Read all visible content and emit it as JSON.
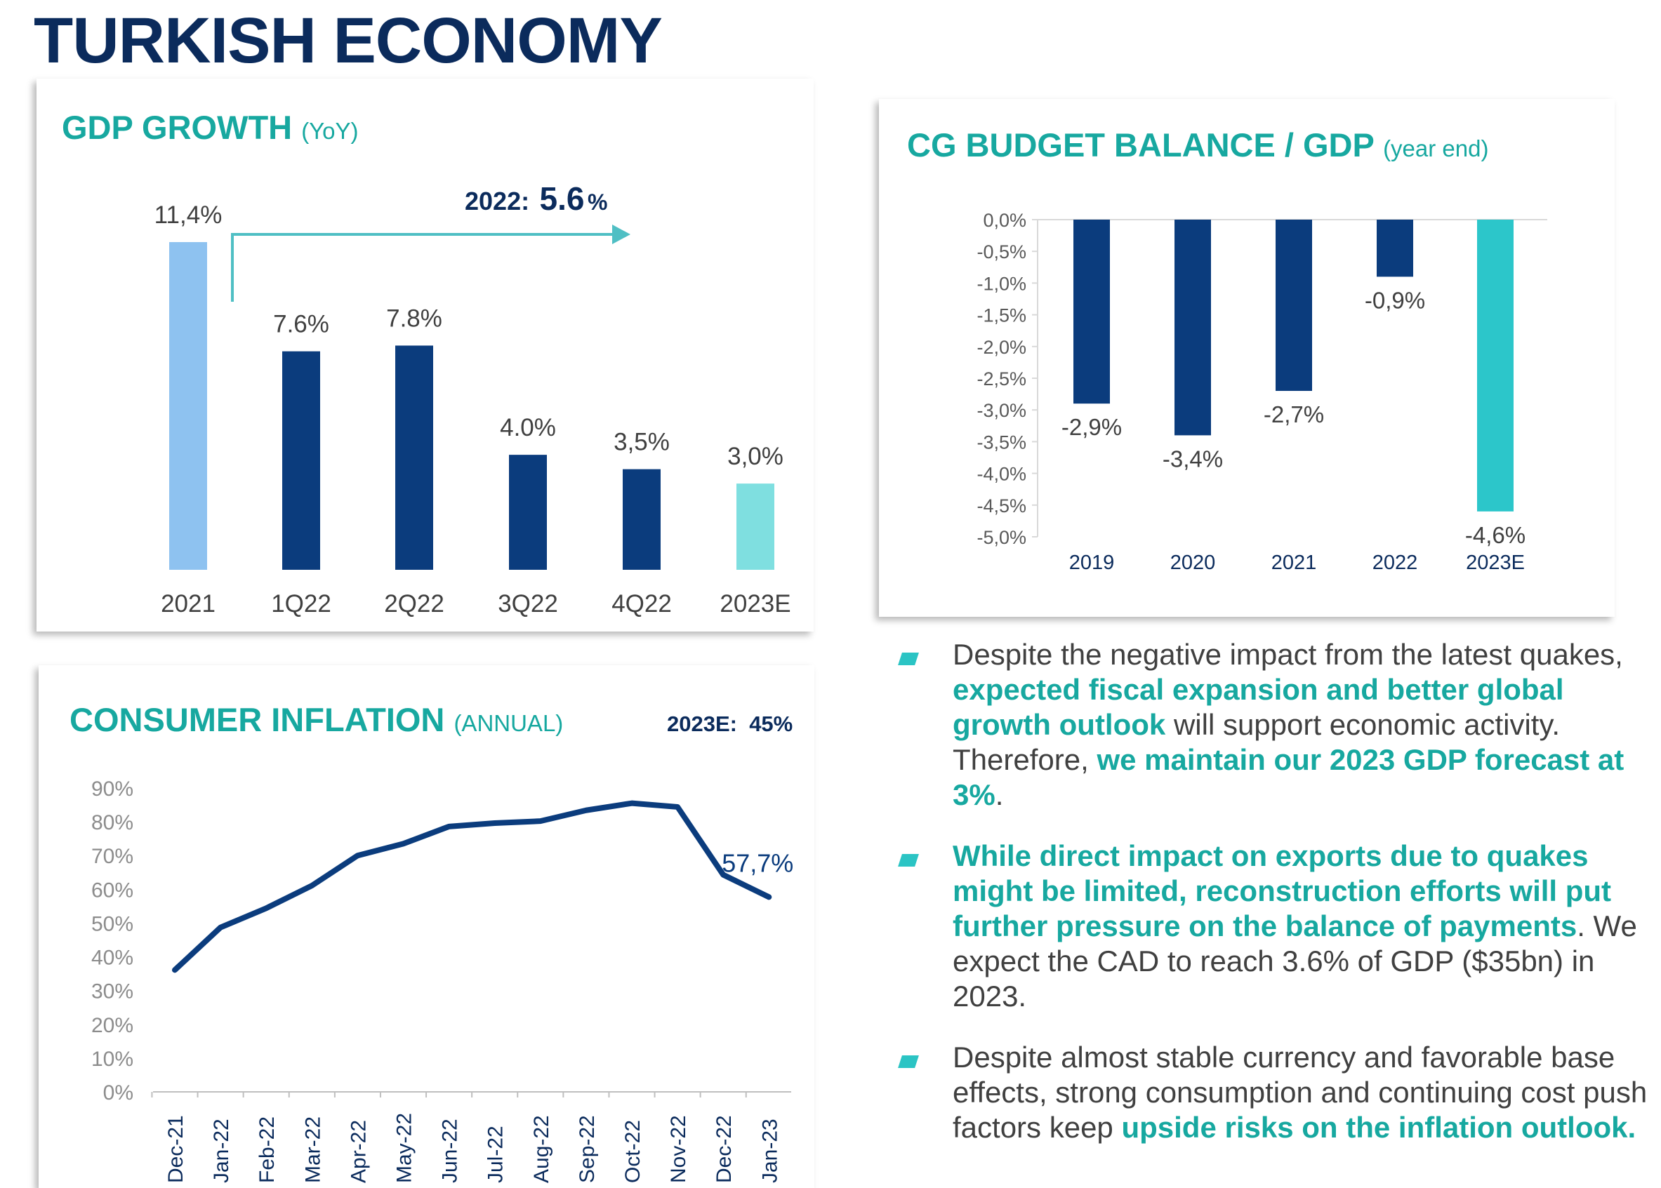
{
  "page": {
    "title": "TURKISH ECONOMY"
  },
  "gdp": {
    "title": "GDP GROWTH",
    "subtitle": "(YoY)",
    "annotation_year": "2022:",
    "annotation_value": "5.6",
    "annotation_unit": "%"
  },
  "budget": {
    "title": "CG BUDGET BALANCE / GDP",
    "subtitle": "(year end)"
  },
  "inflation": {
    "title": "CONSUMER INFLATION",
    "subtitle": "(ANNUAL)",
    "forecast": "2023E:  45%"
  },
  "colors": {
    "navy": "#0b3c7d",
    "light_blue": "#8ec2f0",
    "light_teal": "#7fdfe0",
    "teal": "#2cc6ca",
    "accent_text": "#17a8a0",
    "title": "#0b2b5c"
  },
  "bullets": [
    {
      "segments": [
        {
          "text": "Despite the negative impact from the latest quakes, ",
          "hl": false
        },
        {
          "text": "expected fiscal expansion and better global growth outlook",
          "hl": true
        },
        {
          "text": " will support economic activity. Therefore, ",
          "hl": false
        },
        {
          "text": "we maintain our 2023 GDP forecast at 3%",
          "hl": true
        },
        {
          "text": ".",
          "hl": false
        }
      ]
    },
    {
      "segments": [
        {
          "text": "While direct impact on exports due to quakes might be limited, reconstruction efforts will put further pressure on the balance of payments",
          "hl": true
        },
        {
          "text": ". We expect the CAD to reach 3.6% of GDP ($35bn) in 2023.",
          "hl": false
        }
      ]
    },
    {
      "segments": [
        {
          "text": "Despite almost stable currency and favorable base effects, strong consumption and continuing cost push factors keep ",
          "hl": false
        },
        {
          "text": "upside risks on the inflation outlook.",
          "hl": true
        }
      ]
    }
  ],
  "chart_data": [
    {
      "id": "gdp",
      "type": "bar",
      "title": "GDP GROWTH",
      "categories": [
        "2021",
        "1Q22",
        "2Q22",
        "3Q22",
        "4Q22",
        "2023E"
      ],
      "values": [
        11.4,
        7.6,
        7.8,
        4.0,
        3.5,
        3.0
      ],
      "labels": [
        "11,4%",
        "7.6%",
        "7.8%",
        "4.0%",
        "3,5%",
        "3,0%"
      ],
      "bar_colors": [
        "#8ec2f0",
        "#0b3c7d",
        "#0b3c7d",
        "#0b3c7d",
        "#0b3c7d",
        "#7fdfe0"
      ],
      "ylim": [
        0,
        11.4
      ],
      "grid": false
    },
    {
      "id": "budget",
      "type": "bar",
      "title": "CG BUDGET BALANCE / GDP",
      "categories": [
        "2019",
        "2020",
        "2021",
        "2022",
        "2023E"
      ],
      "values": [
        -2.9,
        -3.4,
        -2.7,
        -0.9,
        -4.6
      ],
      "labels": [
        "-2,9%",
        "-3,4%",
        "-2,7%",
        "-0,9%",
        "-4,6%"
      ],
      "bar_colors": [
        "#0b3c7d",
        "#0b3c7d",
        "#0b3c7d",
        "#0b3c7d",
        "#2cc6ca"
      ],
      "yticks": [
        "0,0%",
        "-0,5%",
        "-1,0%",
        "-1,5%",
        "-2,0%",
        "-2,5%",
        "-3,0%",
        "-3,5%",
        "-4,0%",
        "-4,5%",
        "-5,0%"
      ],
      "ylim": [
        -5.0,
        0.0
      ],
      "grid": false
    },
    {
      "id": "inflation",
      "type": "line",
      "title": "CONSUMER INFLATION",
      "categories": [
        "Dec-21",
        "Jan-22",
        "Feb-22",
        "Mar-22",
        "Apr-22",
        "May-22",
        "Jun-22",
        "Jul-22",
        "Aug-22",
        "Sep-22",
        "Oct-22",
        "Nov-22",
        "Dec-22",
        "Jan-23"
      ],
      "values": [
        36.1,
        48.7,
        54.4,
        61.1,
        70.0,
        73.5,
        78.6,
        79.6,
        80.2,
        83.4,
        85.5,
        84.4,
        64.3,
        57.7
      ],
      "last_label": "57,7%",
      "yticks": [
        "0%",
        "10%",
        "20%",
        "30%",
        "40%",
        "50%",
        "60%",
        "70%",
        "80%",
        "90%"
      ],
      "ylim": [
        0,
        90
      ],
      "line_color": "#0b3c7d",
      "grid": false
    }
  ]
}
